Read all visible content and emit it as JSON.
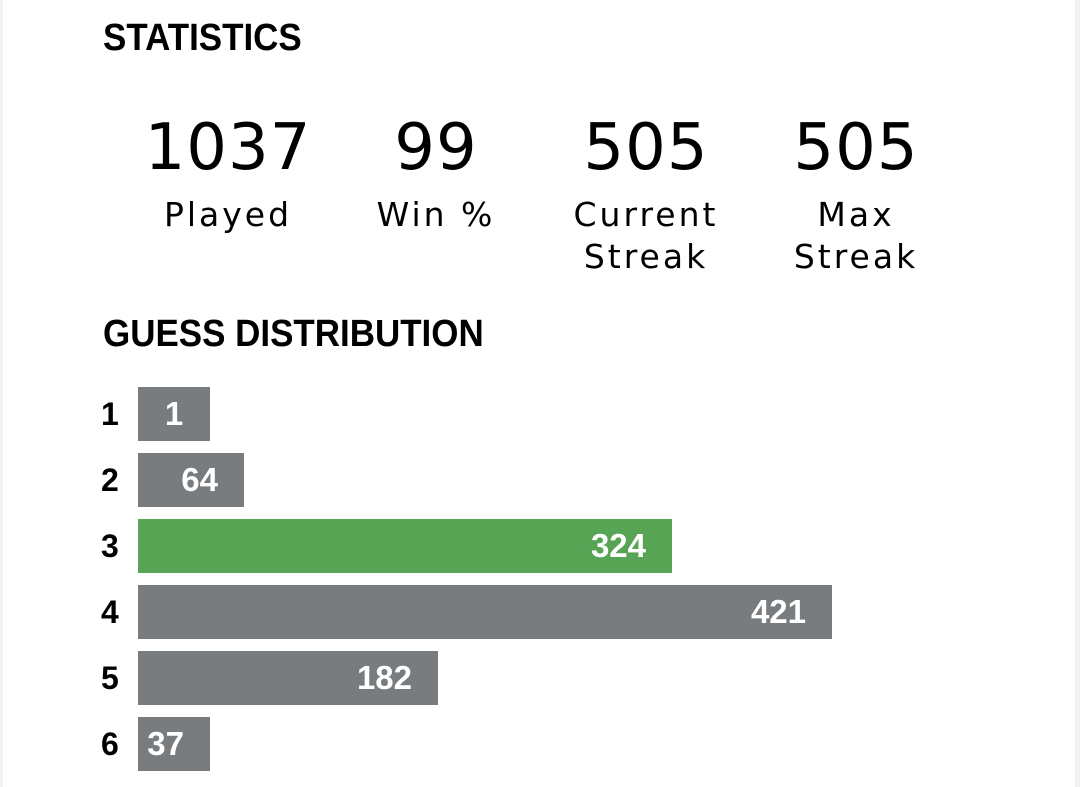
{
  "statistics": {
    "title": "STATISTICS",
    "items": [
      {
        "value": "1037",
        "label": "Played"
      },
      {
        "value": "99",
        "label": "Win %"
      },
      {
        "value": "505",
        "label": "Current\nStreak"
      },
      {
        "value": "505",
        "label": "Max\nStreak"
      }
    ]
  },
  "distribution": {
    "title": "GUESS DISTRIBUTION",
    "rows": [
      {
        "guess": "1",
        "count": "1"
      },
      {
        "guess": "2",
        "count": "64"
      },
      {
        "guess": "3",
        "count": "324"
      },
      {
        "guess": "4",
        "count": "421"
      },
      {
        "guess": "5",
        "count": "182"
      },
      {
        "guess": "6",
        "count": "37"
      }
    ],
    "current_guess": "3"
  },
  "colors": {
    "bar_default": "#787c7e",
    "bar_current": "#57a454",
    "background": "#ffffff"
  }
}
